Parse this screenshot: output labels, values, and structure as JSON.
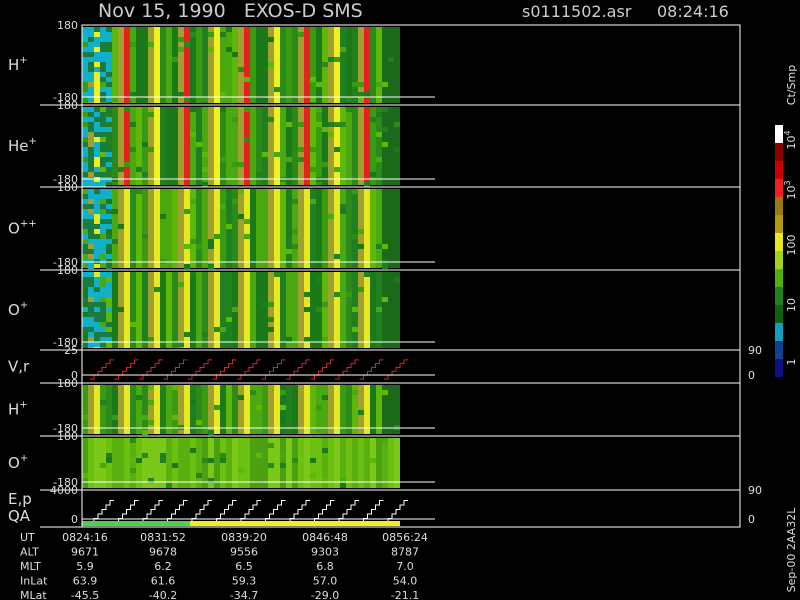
{
  "header": {
    "title": "Nov 15, 1990   EXOS-D SMS",
    "file": "s0111502.asr",
    "time": "08:24:16"
  },
  "panels": [
    {
      "label": "H",
      "sup": "+",
      "top": 180,
      "bottom": -180
    },
    {
      "label": "He",
      "sup": "+",
      "top": 180,
      "bottom": -180
    },
    {
      "label": "O",
      "sup": "++",
      "top": 180,
      "bottom": -180
    },
    {
      "label": "O",
      "sup": "+",
      "top": 180,
      "bottom": -180
    },
    {
      "label": "V,r",
      "top": 25,
      "bottom": 0,
      "right_top": 90,
      "right_bottom": 0
    },
    {
      "label": "H",
      "sup": "+",
      "top": 180,
      "bottom": -180
    },
    {
      "label": "O",
      "sup": "+",
      "top": 180,
      "bottom": -180
    },
    {
      "label": "E,p",
      "label2": "QA",
      "top": 4000,
      "bottom": 0,
      "right_top": 90,
      "right_bottom": 0
    }
  ],
  "colorbar": {
    "units": "Ct/Smp",
    "labels": [
      {
        "base": "10",
        "exp": "4"
      },
      {
        "base": "10",
        "exp": "3"
      },
      {
        "base": "100"
      },
      {
        "base": "10"
      },
      {
        "base": "1"
      }
    ]
  },
  "footer": "Sep-00 2AA32L",
  "table": {
    "rows": [
      [
        "UT",
        "0824:16",
        "0831:52",
        "0839:20",
        "0846:48",
        "0856:24"
      ],
      [
        "ALT",
        "9671",
        "9678",
        "9556",
        "9303",
        "8787"
      ],
      [
        "MLT",
        "5.9",
        "6.2",
        "6.5",
        "6.8",
        "7.0"
      ],
      [
        "InLat",
        "63.9",
        "61.6",
        "59.3",
        "57.0",
        "54.0"
      ],
      [
        "MLat",
        "-45.5",
        "-40.2",
        "-34.7",
        "-29.0",
        "-21.1"
      ]
    ]
  }
}
